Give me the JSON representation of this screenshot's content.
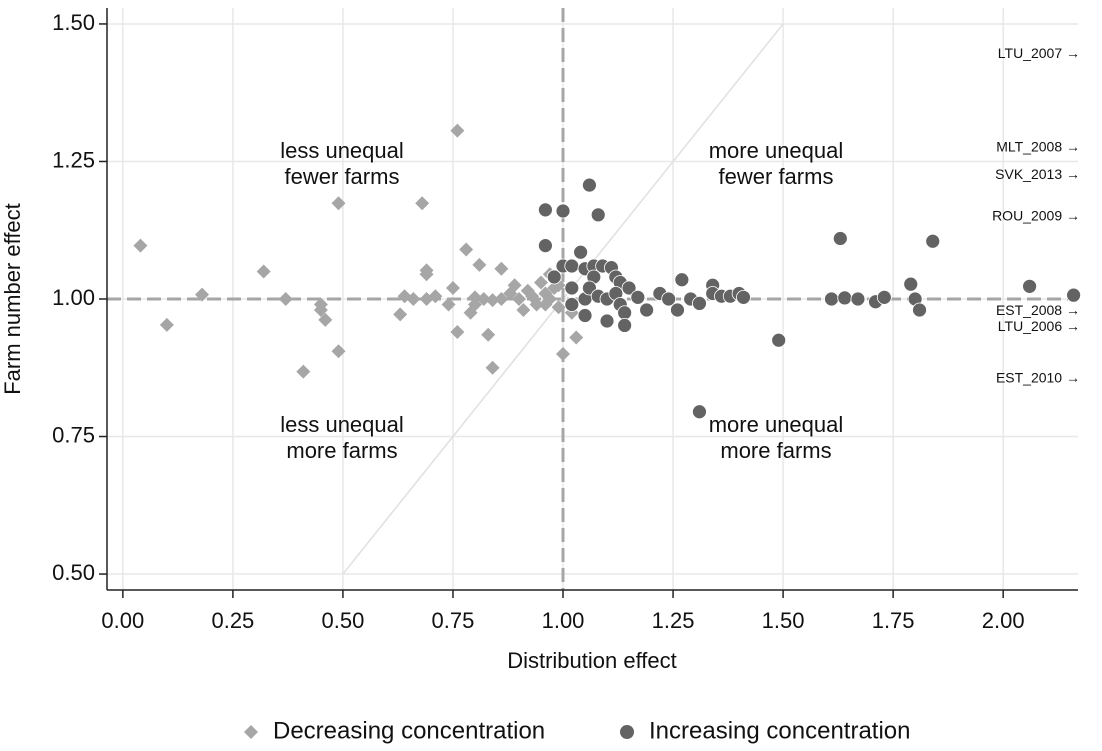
{
  "chart_data": {
    "type": "scatter",
    "xlabel": "Distribution effect",
    "ylabel": "Farm number effect",
    "xlim": [
      -0.036,
      2.17
    ],
    "ylim": [
      0.471,
      1.529
    ],
    "xticks": [
      {
        "value": 0,
        "label": "0.00"
      },
      {
        "value": 0.25,
        "label": "0.25"
      },
      {
        "value": 0.5,
        "label": "0.50"
      },
      {
        "value": 0.75,
        "label": "0.75"
      },
      {
        "value": 1,
        "label": "1.00"
      },
      {
        "value": 1.25,
        "label": "1.25"
      },
      {
        "value": 1.5,
        "label": "1.50"
      },
      {
        "value": 1.75,
        "label": "1.75"
      },
      {
        "value": 2,
        "label": "2.00"
      }
    ],
    "yticks": [
      {
        "value": 0.5,
        "label": "0.50"
      },
      {
        "value": 0.75,
        "label": "0.75"
      },
      {
        "value": 1,
        "label": "1.00"
      },
      {
        "value": 1.25,
        "label": "1.25"
      },
      {
        "value": 1.5,
        "label": "1.50"
      }
    ],
    "grid": true,
    "ref_lines": {
      "h": 1,
      "v": 1,
      "diag": [
        0.5,
        1.5
      ]
    },
    "quadrant_labels": [
      [
        "less unequal",
        "fewer farms"
      ],
      [
        "more unequal",
        "fewer farms"
      ],
      [
        "less unequal",
        "more farms"
      ],
      [
        "more unequal",
        "more farms"
      ]
    ],
    "offscale_labels": [
      {
        "label": "LTU_2007 →",
        "y": 1.445
      },
      {
        "label": "MLT_2008 →",
        "y": 1.275
      },
      {
        "label": "SVK_2013 →",
        "y": 1.225
      },
      {
        "label": "ROU_2009 →",
        "y": 1.149
      },
      {
        "label": "EST_2008 →",
        "y": 0.978
      },
      {
        "label": "LTU_2006 →",
        "y": 0.949
      },
      {
        "label": "EST_2010 →",
        "y": 0.855
      }
    ],
    "legend": "bottom",
    "series": [
      {
        "name": "Decreasing concentration",
        "color": "#a6a6a6",
        "marker": "diamond",
        "x": [
          0.04,
          0.1,
          0.18,
          0.32,
          0.37,
          0.45,
          0.45,
          0.46,
          0.49,
          0.49,
          0.41,
          0.63,
          0.64,
          0.66,
          0.68,
          0.69,
          0.69,
          0.69,
          0.71,
          0.74,
          0.76,
          0.76,
          0.78,
          0.79,
          0.8,
          0.81,
          0.82,
          0.83,
          0.84,
          0.84,
          0.86,
          0.86,
          0.88,
          0.89,
          0.9,
          0.91,
          0.92,
          0.93,
          0.94,
          0.95,
          0.96,
          0.97,
          0.97,
          0.98,
          0.99,
          1.0,
          1.02,
          1.03,
          0.75,
          0.8,
          0.96,
          0.99
        ],
        "values": [
          1.097,
          0.953,
          1.008,
          1.05,
          1.0,
          0.98,
          0.99,
          0.962,
          1.174,
          0.905,
          0.868,
          0.972,
          1.005,
          1.0,
          1.174,
          1.052,
          1.045,
          1.0,
          1.005,
          0.99,
          1.306,
          0.94,
          1.09,
          0.975,
          1.003,
          1.062,
          1.0,
          0.935,
          0.875,
          0.998,
          1.055,
          1.0,
          1.01,
          1.025,
          1.0,
          0.98,
          1.015,
          1.005,
          0.99,
          1.03,
          1.01,
          1.0,
          1.045,
          1.02,
          0.985,
          0.9,
          0.975,
          0.93,
          1.02,
          0.99,
          0.99,
          1.025
        ]
      },
      {
        "name": "Increasing concentration",
        "color": "#636363",
        "marker": "circle",
        "x": [
          0.96,
          1.0,
          0.96,
          1.06,
          1.08,
          0.98,
          1.0,
          1.02,
          1.04,
          1.05,
          1.07,
          1.07,
          1.09,
          1.11,
          1.12,
          1.13,
          1.02,
          1.05,
          1.06,
          1.08,
          1.1,
          1.12,
          1.13,
          1.14,
          1.15,
          1.17,
          1.19,
          1.14,
          1.1,
          1.05,
          1.02,
          1.22,
          1.24,
          1.26,
          1.27,
          1.29,
          1.31,
          1.34,
          1.34,
          1.36,
          1.38,
          1.4,
          1.41,
          1.31,
          1.49,
          1.61,
          1.63,
          1.64,
          1.67,
          1.71,
          1.73,
          1.79,
          1.8,
          1.81,
          1.84,
          2.06,
          2.16
        ],
        "values": [
          1.162,
          1.16,
          1.097,
          1.207,
          1.153,
          1.04,
          1.06,
          1.06,
          1.085,
          1.055,
          1.06,
          1.04,
          1.06,
          1.057,
          1.04,
          1.03,
          1.02,
          1.0,
          1.02,
          1.005,
          1.0,
          1.01,
          0.99,
          0.975,
          1.02,
          1.003,
          0.98,
          0.952,
          0.96,
          0.97,
          0.99,
          1.01,
          1.0,
          0.98,
          1.035,
          1.0,
          0.992,
          1.025,
          1.01,
          1.005,
          1.005,
          1.01,
          1.003,
          0.795,
          0.925,
          1.0,
          1.11,
          1.002,
          1.0,
          0.995,
          1.003,
          1.027,
          1.0,
          0.98,
          1.105,
          1.023,
          1.007
        ]
      }
    ]
  }
}
